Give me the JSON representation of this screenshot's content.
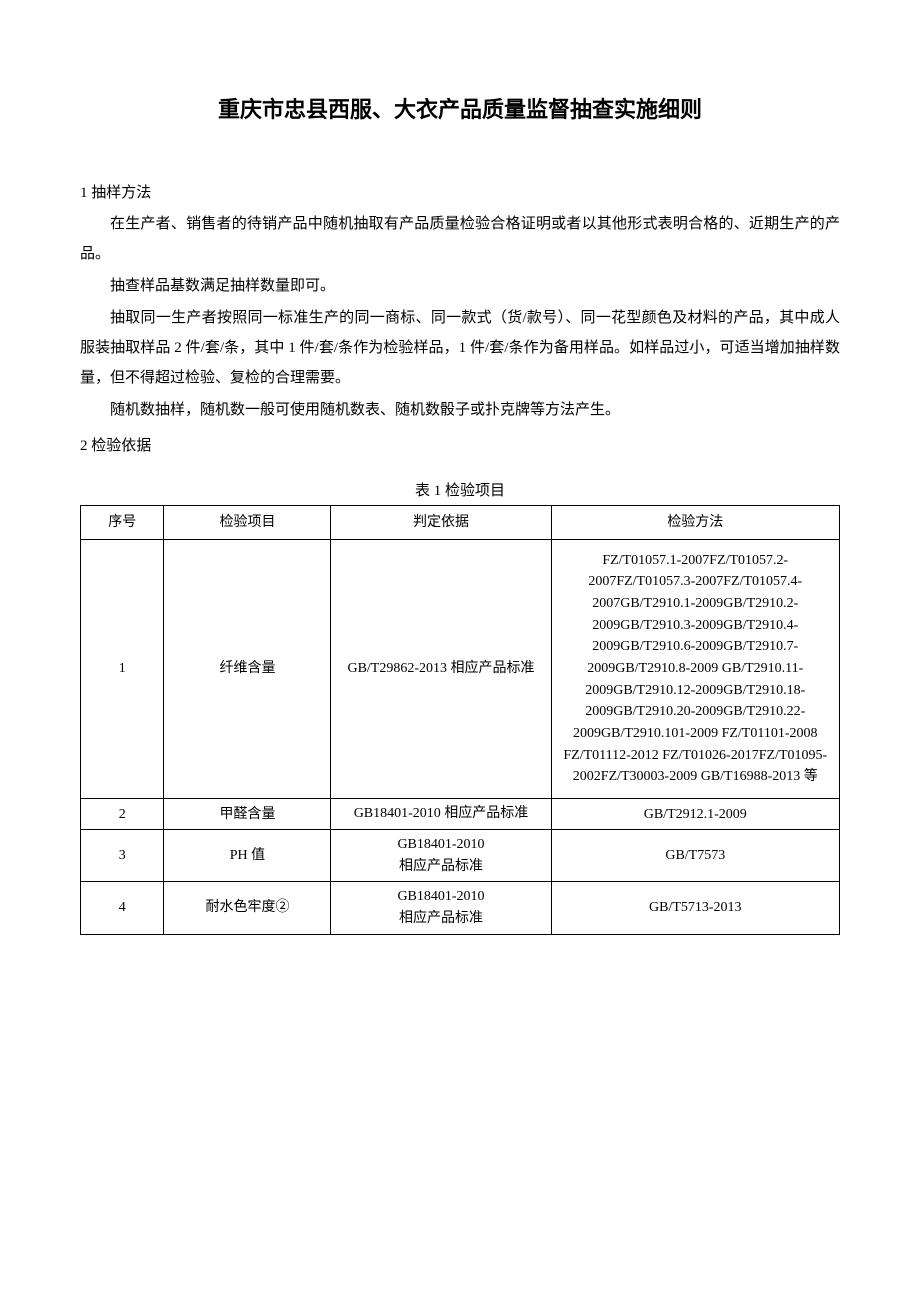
{
  "title": "重庆市忠县西服、大衣产品质量监督抽查实施细则",
  "section1": {
    "heading": "1 抽样方法",
    "p1": "在生产者、销售者的待销产品中随机抽取有产品质量检验合格证明或者以其他形式表明合格的、近期生产的产品。",
    "p2": "抽查样品基数满足抽样数量即可。",
    "p3": "抽取同一生产者按照同一标准生产的同一商标、同一款式（货/款号）、同一花型颜色及材料的产品，其中成人服装抽取样品 2 件/套/条，其中 1 件/套/条作为检验样品，1 件/套/条作为备用样品。如样品过小，可适当增加抽样数量，但不得超过检验、复检的合理需要。",
    "p4": "随机数抽样，随机数一般可使用随机数表、随机数骰子或扑克牌等方法产生。"
  },
  "section2": {
    "heading": "2 检验依据"
  },
  "table": {
    "caption": "表 1 检验项目",
    "headers": {
      "num": "序号",
      "item": "检验项目",
      "basis": "判定依据",
      "method": "检验方法"
    },
    "rows": [
      {
        "num": "1",
        "item": "纤维含量",
        "basis": "GB/T29862-2013 相应产品标准",
        "method": "FZ/T01057.1-2007FZ/T01057.2-2007FZ/T01057.3-2007FZ/T01057.4-2007GB/T2910.1-2009GB/T2910.2-2009GB/T2910.3-2009GB/T2910.4-2009GB/T2910.6-2009GB/T2910.7-2009GB/T2910.8-2009 GB/T2910.11-2009GB/T2910.12-2009GB/T2910.18-2009GB/T2910.20-2009GB/T2910.22-2009GB/T2910.101-2009 FZ/T01101-2008 FZ/T01112-2012 FZ/T01026-2017FZ/T01095-2002FZ/T30003-2009 GB/T16988-2013 等"
      },
      {
        "num": "2",
        "item": "甲醛含量",
        "basis": "GB18401-2010 相应产品标准",
        "method": "GB/T2912.1-2009"
      },
      {
        "num": "3",
        "item": "PH 值",
        "basis_l1": "GB18401-2010",
        "basis_l2": "相应产品标准",
        "method": "GB/T7573"
      },
      {
        "num": "4",
        "item": "耐水色牢度②",
        "basis_l1": "GB18401-2010",
        "basis_l2": "相应产品标准",
        "method": "GB/T5713-2013"
      }
    ]
  }
}
